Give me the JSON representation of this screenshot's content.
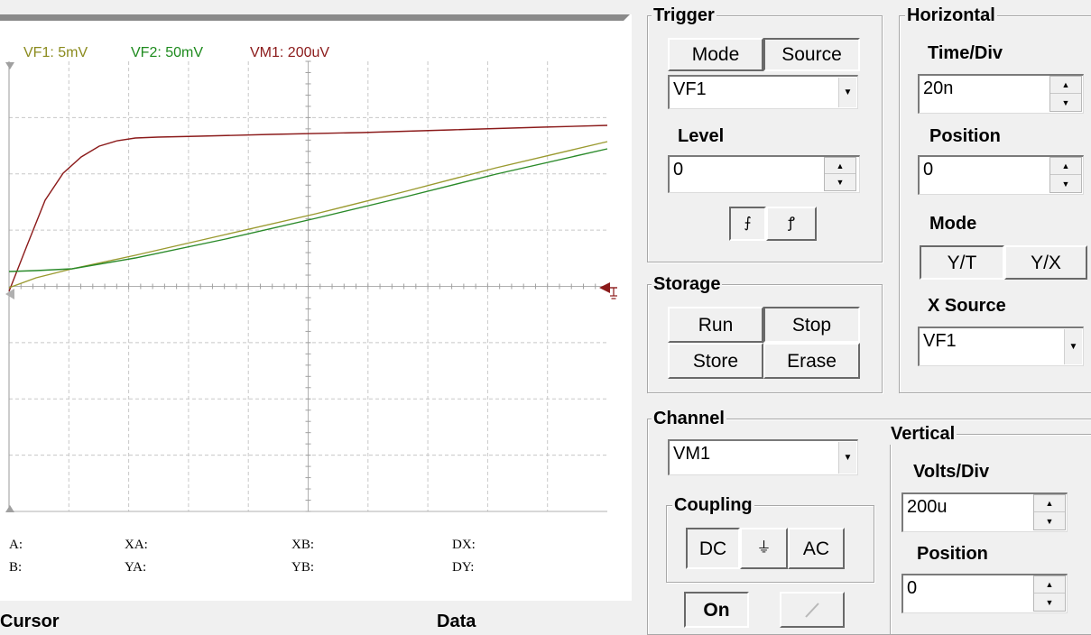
{
  "scope": {
    "legend": [
      {
        "text": "VF1: 5mV",
        "color": "#8b8b1e"
      },
      {
        "text": "VF2: 50mV",
        "color": "#1e8b1e"
      },
      {
        "text": "VM1: 200uV",
        "color": "#8b1a1a"
      }
    ],
    "cursor_readout": {
      "a": "A:",
      "b": "B:",
      "xa": "XA:",
      "ya": "YA:",
      "xb": "XB:",
      "yb": "YB:",
      "dx": "DX:",
      "dy": "DY:"
    },
    "section_cursor": "Cursor",
    "section_data": "Data"
  },
  "trigger": {
    "title": "Trigger",
    "mode_label": "Mode",
    "source_label": "Source",
    "source_value": "VF1",
    "level_label": "Level",
    "level_value": "0",
    "edge_falling_glyph": "⨍",
    "edge_rising_glyph": "ꝭ"
  },
  "horizontal": {
    "title": "Horizontal",
    "time_div_label": "Time/Div",
    "time_div_value": "20n",
    "position_label": "Position",
    "position_value": "0",
    "mode_label": "Mode",
    "yt_label": "Y/T",
    "yx_label": "Y/X",
    "xsource_label": "X Source",
    "xsource_value": "VF1"
  },
  "storage": {
    "title": "Storage",
    "run_label": "Run",
    "stop_label": "Stop",
    "store_label": "Store",
    "erase_label": "Erase"
  },
  "channel": {
    "title": "Channel",
    "value": "VM1",
    "coupling_title": "Coupling",
    "dc_label": "DC",
    "gnd_glyph": "⏚",
    "ac_label": "AC",
    "on_label": "On"
  },
  "vertical": {
    "title": "Vertical",
    "volts_div_label": "Volts/Div",
    "volts_div_value": "200u",
    "position_label": "Position",
    "position_value": "0"
  }
}
